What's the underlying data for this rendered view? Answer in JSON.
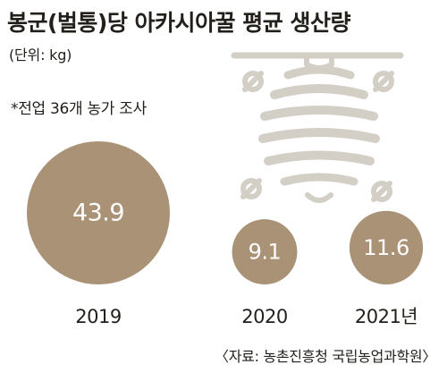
{
  "title": "봉군(벌통)당 아카시아꿀 평균 생산량",
  "unit_label": "(단위: kg)",
  "note": "*전업 36개 농가 조사",
  "source": "〈자료: 농촌진흥청 국립농업과학원〉",
  "icons": {
    "beehive": "beehive-icon",
    "bee": "bee-icon"
  },
  "colors": {
    "bubble": "#a99276",
    "icon_line": "#d3cec6",
    "text": "#231f1a"
  },
  "chart_data": {
    "type": "bubble",
    "title": "봉군(벌통)당 아카시아꿀 평균 생산량",
    "unit": "kg",
    "categories": [
      "2019",
      "2020",
      "2021년"
    ],
    "values": [
      43.9,
      9.1,
      11.6
    ],
    "value_labels": [
      "43.9",
      "9.1",
      "11.6"
    ]
  }
}
